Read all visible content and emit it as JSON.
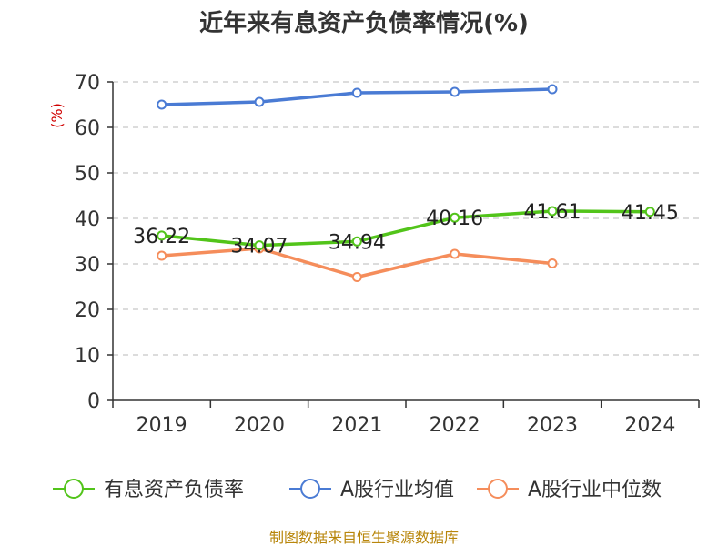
{
  "chart_data": {
    "type": "line",
    "title": "近年来有息资产负债率情况(%)",
    "ylabel": "(%)",
    "ylim": [
      0,
      70
    ],
    "yticks": [
      0,
      10,
      20,
      30,
      40,
      50,
      60,
      70
    ],
    "categories": [
      "2019",
      "2020",
      "2021",
      "2022",
      "2023",
      "2024"
    ],
    "grid": "horizontal dashed",
    "legend_position": "bottom",
    "series": [
      {
        "name": "有息资产负债率",
        "color": "#52c41a",
        "values": [
          36.22,
          34.07,
          34.94,
          40.16,
          41.61,
          41.45
        ],
        "data_labels": [
          "36.22",
          "34.07",
          "34.94",
          "40.16",
          "41.61",
          "41.45"
        ]
      },
      {
        "name": "A股行业均值",
        "color": "#4a7bd4",
        "values": [
          65.0,
          65.6,
          67.6,
          67.8,
          68.4,
          null
        ]
      },
      {
        "name": "A股行业中位数",
        "color": "#f58d5b",
        "values": [
          31.8,
          33.4,
          27.1,
          32.2,
          30.1,
          null
        ]
      }
    ]
  },
  "source": "制图数据来自恒生聚源数据库"
}
